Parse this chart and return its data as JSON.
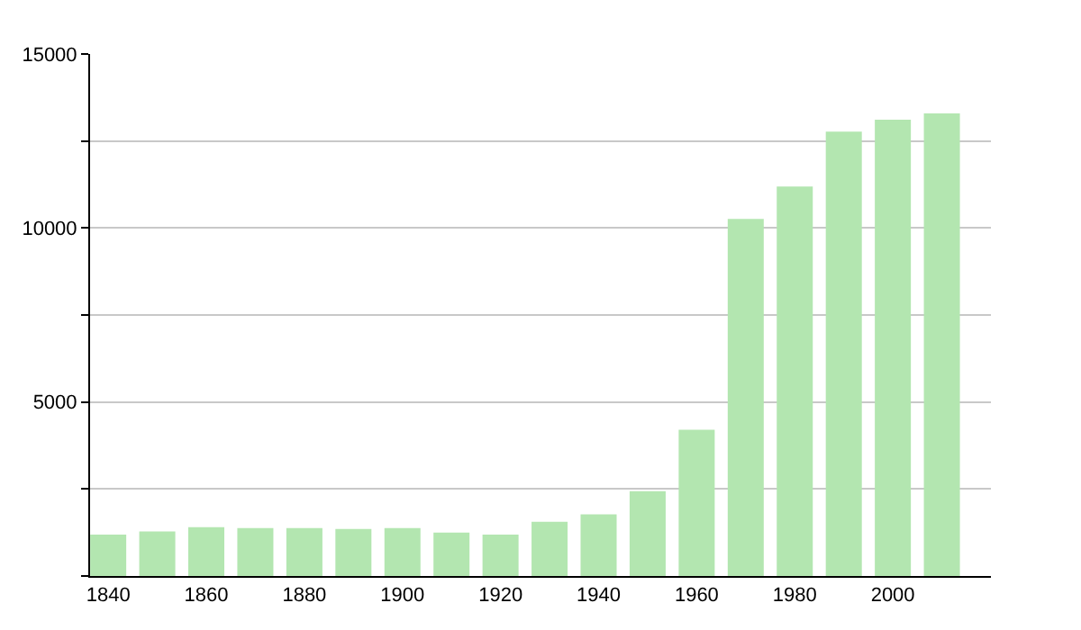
{
  "chart_data": {
    "type": "bar",
    "x": [
      1840,
      1850,
      1860,
      1870,
      1880,
      1890,
      1900,
      1910,
      1920,
      1930,
      1940,
      1950,
      1960,
      1970,
      1980,
      1990,
      2000,
      2010
    ],
    "values": [
      1190,
      1280,
      1400,
      1380,
      1380,
      1350,
      1380,
      1250,
      1190,
      1560,
      1770,
      2440,
      4200,
      10260,
      11190,
      12770,
      13110,
      13290
    ],
    "color": "#b3e6b0",
    "xlim": [
      1836.3,
      2020
    ],
    "xticks": [
      1840,
      1860,
      1880,
      1900,
      1920,
      1940,
      1960,
      1980,
      2000
    ],
    "ylim": [
      0,
      15000
    ],
    "yticks": [
      {
        "value": 0,
        "label": null
      },
      {
        "value": 2500,
        "label": null
      },
      5000,
      {
        "value": 7500,
        "label": null
      },
      10000,
      {
        "value": 12500,
        "label": null
      },
      15000
    ],
    "grid": "y"
  }
}
